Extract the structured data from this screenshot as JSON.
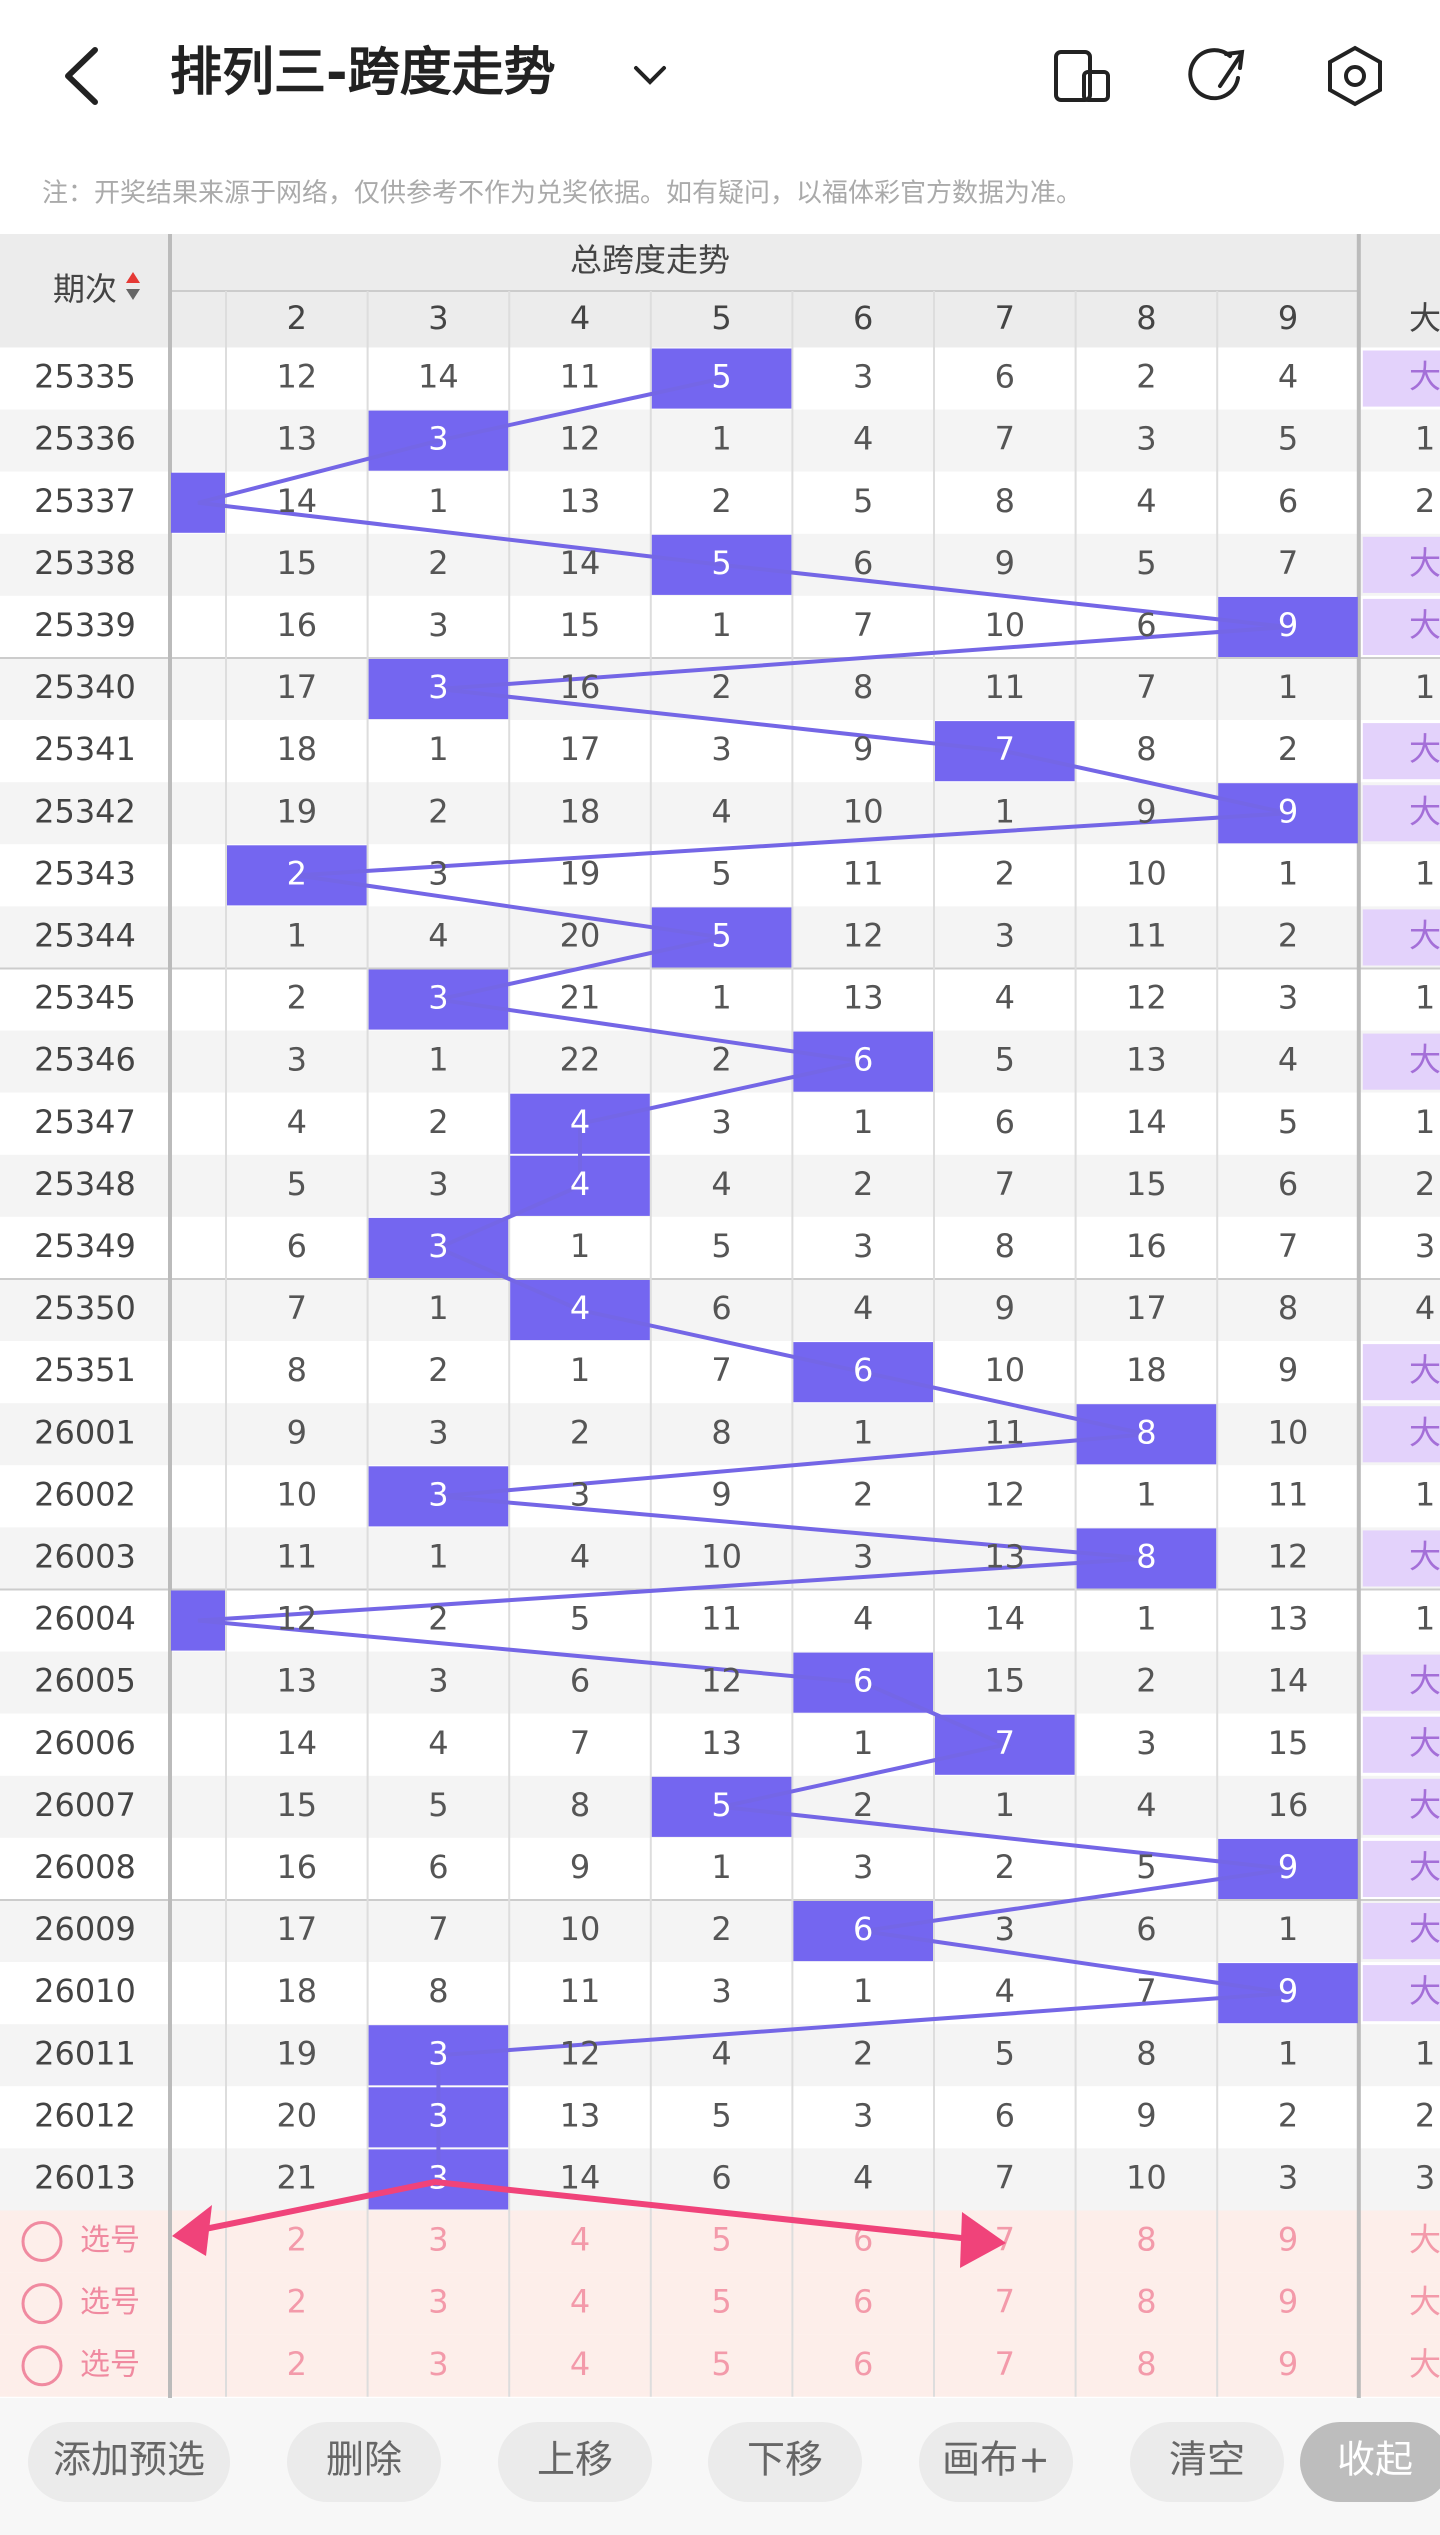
{
  "header": {
    "title": "排列三-跨度走势"
  },
  "note": "注：开奖结果来源于网络，仅供参考不作为兑奖依据。如有疑问，以福体彩官方数据为准。",
  "table": {
    "period_header": "期次",
    "group_header": "总跨度走势",
    "columns": [
      2,
      3,
      4,
      5,
      6,
      7,
      8,
      9
    ],
    "extra_header": "大",
    "rows": [
      {
        "period": "25335",
        "cells": [
          12,
          14,
          11,
          5,
          3,
          6,
          2,
          4
        ],
        "hit": 5,
        "extra": "大"
      },
      {
        "period": "25336",
        "cells": [
          13,
          3,
          12,
          1,
          4,
          7,
          3,
          5
        ],
        "hit": 3,
        "extra": 1
      },
      {
        "period": "25337",
        "cells": [
          14,
          1,
          13,
          2,
          5,
          8,
          4,
          6
        ],
        "hit": 1,
        "extra": 2
      },
      {
        "period": "25338",
        "cells": [
          15,
          2,
          14,
          5,
          6,
          9,
          5,
          7
        ],
        "hit": 5,
        "extra": "大"
      },
      {
        "period": "25339",
        "cells": [
          16,
          3,
          15,
          1,
          7,
          10,
          6,
          9
        ],
        "hit": 9,
        "extra": "大"
      },
      {
        "period": "25340",
        "cells": [
          17,
          3,
          16,
          2,
          8,
          11,
          7,
          1
        ],
        "hit": 3,
        "extra": 1
      },
      {
        "period": "25341",
        "cells": [
          18,
          1,
          17,
          3,
          9,
          7,
          8,
          2
        ],
        "hit": 7,
        "extra": "大"
      },
      {
        "period": "25342",
        "cells": [
          19,
          2,
          18,
          4,
          10,
          1,
          9,
          9
        ],
        "hit": 9,
        "extra": "大"
      },
      {
        "period": "25343",
        "cells": [
          2,
          3,
          19,
          5,
          11,
          2,
          10,
          1
        ],
        "hit": 2,
        "extra": 1
      },
      {
        "period": "25344",
        "cells": [
          1,
          4,
          20,
          5,
          12,
          3,
          11,
          2
        ],
        "hit": 5,
        "extra": "大"
      },
      {
        "period": "25345",
        "cells": [
          2,
          3,
          21,
          1,
          13,
          4,
          12,
          3
        ],
        "hit": 3,
        "extra": 1
      },
      {
        "period": "25346",
        "cells": [
          3,
          1,
          22,
          2,
          6,
          5,
          13,
          4
        ],
        "hit": 6,
        "extra": "大"
      },
      {
        "period": "25347",
        "cells": [
          4,
          2,
          4,
          3,
          1,
          6,
          14,
          5
        ],
        "hit": 4,
        "extra": 1
      },
      {
        "period": "25348",
        "cells": [
          5,
          3,
          4,
          4,
          2,
          7,
          15,
          6
        ],
        "hit": 4,
        "extra": 2
      },
      {
        "period": "25349",
        "cells": [
          6,
          3,
          1,
          5,
          3,
          8,
          16,
          7
        ],
        "hit": 3,
        "extra": 3
      },
      {
        "period": "25350",
        "cells": [
          7,
          1,
          4,
          6,
          4,
          9,
          17,
          8
        ],
        "hit": 4,
        "extra": 4
      },
      {
        "period": "25351",
        "cells": [
          8,
          2,
          1,
          7,
          6,
          10,
          18,
          9
        ],
        "hit": 6,
        "extra": "大"
      },
      {
        "period": "26001",
        "cells": [
          9,
          3,
          2,
          8,
          1,
          11,
          8,
          10
        ],
        "hit": 8,
        "extra": "大"
      },
      {
        "period": "26002",
        "cells": [
          10,
          3,
          3,
          9,
          2,
          12,
          1,
          11
        ],
        "hit": 3,
        "extra": 1
      },
      {
        "period": "26003",
        "cells": [
          11,
          1,
          4,
          10,
          3,
          13,
          8,
          12
        ],
        "hit": 8,
        "extra": "大"
      },
      {
        "period": "26004",
        "cells": [
          12,
          2,
          5,
          11,
          4,
          14,
          1,
          13
        ],
        "hit": 1,
        "extra": 1
      },
      {
        "period": "26005",
        "cells": [
          13,
          3,
          6,
          12,
          6,
          15,
          2,
          14
        ],
        "hit": 6,
        "extra": "大"
      },
      {
        "period": "26006",
        "cells": [
          14,
          4,
          7,
          13,
          1,
          7,
          3,
          15
        ],
        "hit": 7,
        "extra": "大"
      },
      {
        "period": "26007",
        "cells": [
          15,
          5,
          8,
          5,
          2,
          1,
          4,
          16
        ],
        "hit": 5,
        "extra": "大"
      },
      {
        "period": "26008",
        "cells": [
          16,
          6,
          9,
          1,
          3,
          2,
          5,
          9
        ],
        "hit": 9,
        "extra": "大"
      },
      {
        "period": "26009",
        "cells": [
          17,
          7,
          10,
          2,
          6,
          3,
          6,
          1
        ],
        "hit": 6,
        "extra": "大"
      },
      {
        "period": "26010",
        "cells": [
          18,
          8,
          11,
          3,
          1,
          4,
          7,
          9
        ],
        "hit": 9,
        "extra": "大"
      },
      {
        "period": "26011",
        "cells": [
          19,
          3,
          12,
          4,
          2,
          5,
          8,
          1
        ],
        "hit": 3,
        "extra": 1
      },
      {
        "period": "26012",
        "cells": [
          20,
          3,
          13,
          5,
          3,
          6,
          9,
          2
        ],
        "hit": 3,
        "extra": 2
      },
      {
        "period": "26013",
        "cells": [
          21,
          3,
          14,
          6,
          4,
          7,
          10,
          3
        ],
        "hit": 3,
        "extra": 3
      }
    ],
    "pick_rows": [
      {
        "label": "选号",
        "cells": [
          2,
          3,
          4,
          5,
          6,
          7,
          8,
          9
        ],
        "extra": "大"
      },
      {
        "label": "选号",
        "cells": [
          2,
          3,
          4,
          5,
          6,
          7,
          8,
          9
        ],
        "extra": "大"
      },
      {
        "label": "选号",
        "cells": [
          2,
          3,
          4,
          5,
          6,
          7,
          8,
          9
        ],
        "extra": "大"
      }
    ]
  },
  "toolbar": [
    "添加预选",
    "删除",
    "上移",
    "下移",
    "画布+",
    "清空",
    "收起"
  ]
}
